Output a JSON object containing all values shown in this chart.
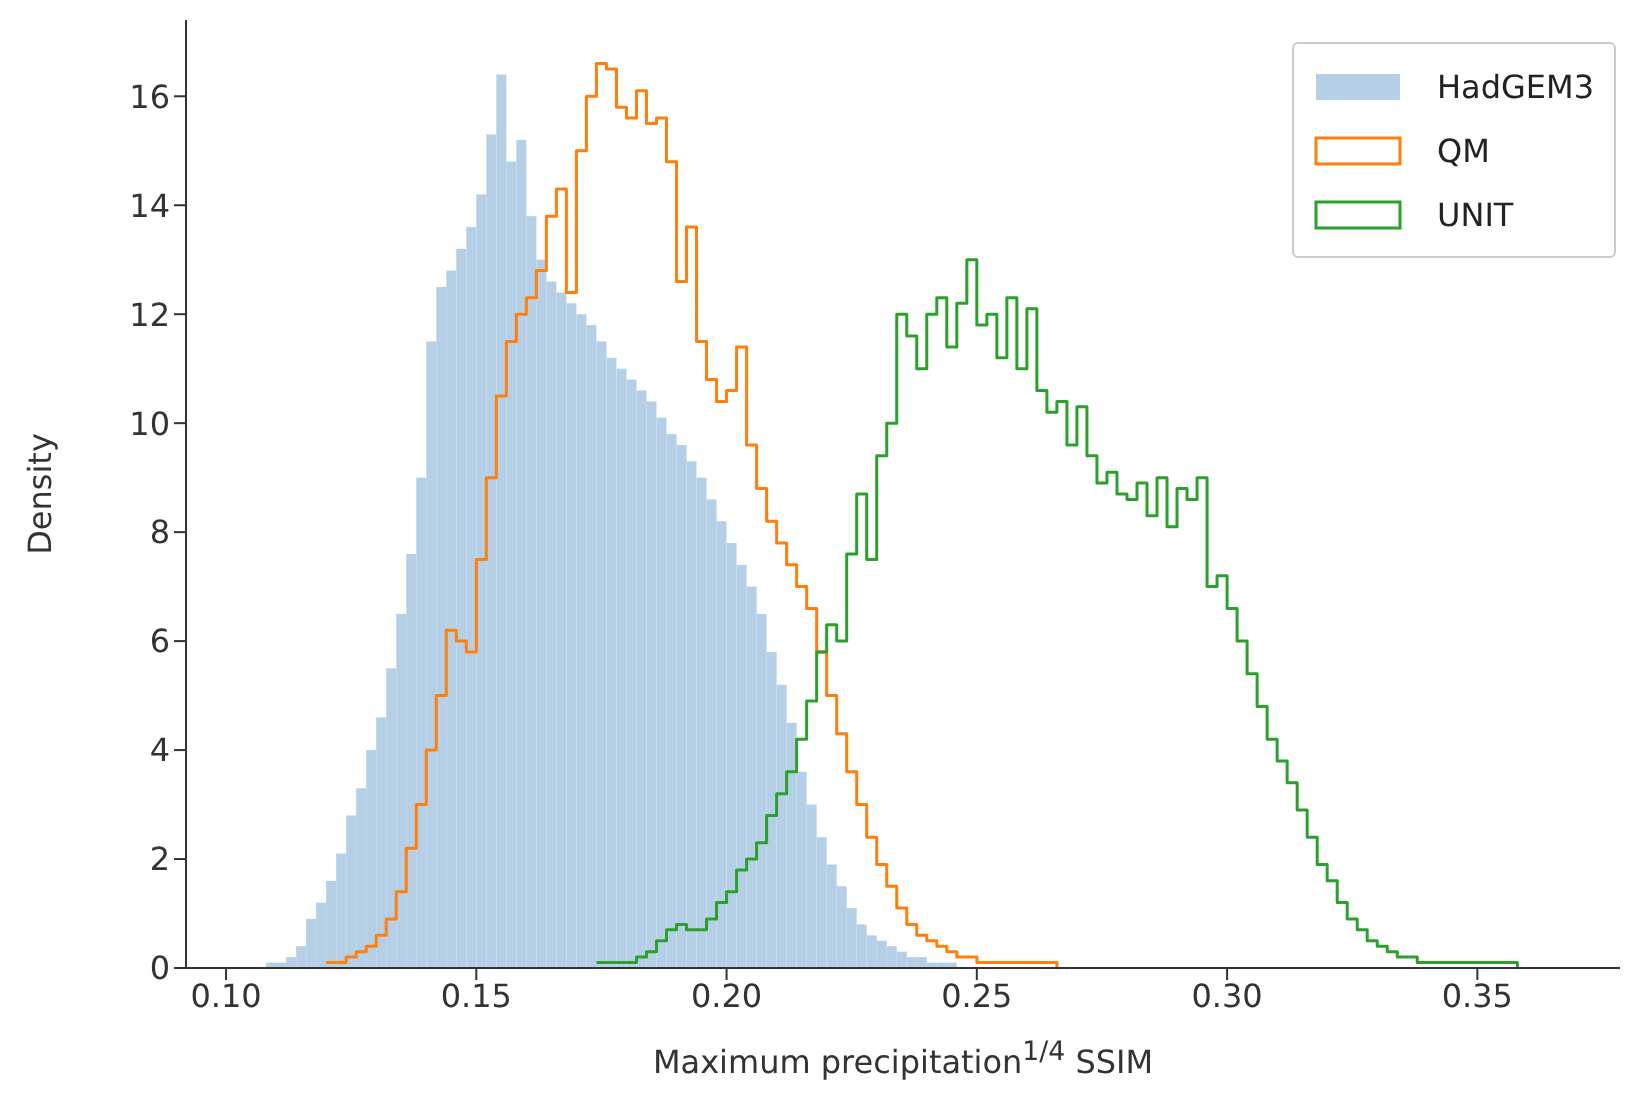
{
  "chart_data": {
    "type": "histogram",
    "xlabel": "Maximum precipitation$^{1/4}$ SSIM",
    "ylabel": "Density",
    "bins": [
      0.104,
      0.106,
      0.108,
      0.11,
      0.112,
      0.114,
      0.116,
      0.118,
      0.12,
      0.122,
      0.124,
      0.126,
      0.128,
      0.13,
      0.132,
      0.134,
      0.136,
      0.138,
      0.14,
      0.142,
      0.144,
      0.146,
      0.148,
      0.15,
      0.152,
      0.154,
      0.156,
      0.158,
      0.16,
      0.162,
      0.164,
      0.166,
      0.168,
      0.17,
      0.172,
      0.174,
      0.176,
      0.178,
      0.18,
      0.182,
      0.184,
      0.186,
      0.188,
      0.19,
      0.192,
      0.194,
      0.196,
      0.198,
      0.2,
      0.202,
      0.204,
      0.206,
      0.208,
      0.21,
      0.212,
      0.214,
      0.216,
      0.218,
      0.22,
      0.222,
      0.224,
      0.226,
      0.228,
      0.23,
      0.232,
      0.234,
      0.236,
      0.238,
      0.24,
      0.242,
      0.244,
      0.246,
      0.248,
      0.25,
      0.252,
      0.254,
      0.256,
      0.258,
      0.26,
      0.262,
      0.264,
      0.266,
      0.268,
      0.27,
      0.272,
      0.274,
      0.276,
      0.278,
      0.28,
      0.282,
      0.284,
      0.286,
      0.288,
      0.29,
      0.292,
      0.294,
      0.296,
      0.298,
      0.3,
      0.302,
      0.304,
      0.306,
      0.308,
      0.31,
      0.312,
      0.314,
      0.316,
      0.318,
      0.32,
      0.322,
      0.324,
      0.326,
      0.328,
      0.33,
      0.332,
      0.334,
      0.336,
      0.338,
      0.34,
      0.342,
      0.344,
      0.346,
      0.348,
      0.35,
      0.352,
      0.354,
      0.356,
      0.358
    ],
    "series": [
      {
        "name": "HadGEM3",
        "color": "#b5d0e6",
        "values": [
          0,
          0,
          0.1,
          0.1,
          0.2,
          0.4,
          0.9,
          1.2,
          1.6,
          2.1,
          2.8,
          3.3,
          4.0,
          4.6,
          5.5,
          6.5,
          7.6,
          9.0,
          11.5,
          12.5,
          12.8,
          13.2,
          13.6,
          14.2,
          15.3,
          16.4,
          14.8,
          15.2,
          13.8,
          13.0,
          12.6,
          12.4,
          12.2,
          12.0,
          11.8,
          11.5,
          11.2,
          11.0,
          10.8,
          10.6,
          10.4,
          10.1,
          9.8,
          9.6,
          9.3,
          9.0,
          8.6,
          8.2,
          7.8,
          7.4,
          7.0,
          6.5,
          5.8,
          5.2,
          4.5,
          3.6,
          3.0,
          2.4,
          1.9,
          1.5,
          1.1,
          0.8,
          0.6,
          0.5,
          0.4,
          0.3,
          0.2,
          0.2,
          0.1,
          0.1,
          0.1,
          0,
          0,
          0,
          0,
          0,
          0,
          0,
          0,
          0,
          0,
          0,
          0,
          0,
          0,
          0,
          0,
          0,
          0,
          0,
          0,
          0,
          0,
          0,
          0,
          0,
          0,
          0,
          0,
          0,
          0,
          0,
          0,
          0,
          0,
          0,
          0,
          0,
          0,
          0,
          0,
          0,
          0,
          0,
          0,
          0,
          0,
          0,
          0,
          0,
          0,
          0,
          0,
          0,
          0,
          0,
          0
        ]
      },
      {
        "name": "QM",
        "type": "step",
        "color": "#ff7f0e",
        "x": [
          0.12,
          0.122,
          0.124,
          0.126,
          0.128,
          0.13,
          0.132,
          0.134,
          0.136,
          0.138,
          0.14,
          0.142,
          0.144,
          0.146,
          0.148,
          0.15,
          0.152,
          0.154,
          0.156,
          0.158,
          0.16,
          0.162,
          0.164,
          0.166,
          0.168,
          0.17,
          0.172,
          0.174,
          0.176,
          0.178,
          0.18,
          0.182,
          0.184,
          0.186,
          0.188,
          0.19,
          0.192,
          0.194,
          0.196,
          0.198,
          0.2,
          0.202,
          0.204,
          0.206,
          0.208,
          0.21,
          0.212,
          0.214,
          0.216,
          0.218,
          0.22,
          0.222,
          0.224,
          0.226,
          0.228,
          0.23,
          0.232,
          0.234,
          0.236,
          0.238,
          0.24,
          0.242,
          0.244,
          0.246,
          0.248,
          0.25,
          0.252,
          0.254,
          0.256,
          0.258,
          0.26,
          0.262,
          0.264,
          0.266
        ],
        "values": [
          0.1,
          0.1,
          0.2,
          0.3,
          0.4,
          0.6,
          0.9,
          1.4,
          2.2,
          3.0,
          4.0,
          5.0,
          6.2,
          6.0,
          5.8,
          7.5,
          9.0,
          10.5,
          11.5,
          12.0,
          12.3,
          12.8,
          13.8,
          14.3,
          12.4,
          15.0,
          16.0,
          16.6,
          16.5,
          15.8,
          15.6,
          16.1,
          15.5,
          15.6,
          14.8,
          12.6,
          13.6,
          11.5,
          10.8,
          10.4,
          10.6,
          11.4,
          9.6,
          8.8,
          8.2,
          7.8,
          7.4,
          7.0,
          6.6,
          5.8,
          5.0,
          4.3,
          3.6,
          3.0,
          2.4,
          1.9,
          1.5,
          1.1,
          0.8,
          0.6,
          0.5,
          0.4,
          0.3,
          0.2,
          0.2,
          0.1,
          0.1,
          0.1,
          0.1,
          0.1,
          0.1,
          0.1,
          0.1,
          0
        ]
      },
      {
        "name": "UNIT",
        "type": "step",
        "color": "#2ca02c",
        "x": [
          0.174,
          0.176,
          0.178,
          0.18,
          0.182,
          0.184,
          0.186,
          0.188,
          0.19,
          0.192,
          0.194,
          0.196,
          0.198,
          0.2,
          0.202,
          0.204,
          0.206,
          0.208,
          0.21,
          0.212,
          0.214,
          0.216,
          0.218,
          0.22,
          0.222,
          0.224,
          0.226,
          0.228,
          0.23,
          0.232,
          0.234,
          0.236,
          0.238,
          0.24,
          0.242,
          0.244,
          0.246,
          0.248,
          0.25,
          0.252,
          0.254,
          0.256,
          0.258,
          0.26,
          0.262,
          0.264,
          0.266,
          0.268,
          0.27,
          0.272,
          0.274,
          0.276,
          0.278,
          0.28,
          0.282,
          0.284,
          0.286,
          0.288,
          0.29,
          0.292,
          0.294,
          0.296,
          0.298,
          0.3,
          0.302,
          0.304,
          0.306,
          0.308,
          0.31,
          0.312,
          0.314,
          0.316,
          0.318,
          0.32,
          0.322,
          0.324,
          0.326,
          0.328,
          0.33,
          0.332,
          0.334,
          0.336,
          0.338,
          0.34,
          0.342,
          0.344,
          0.346,
          0.348,
          0.35,
          0.352,
          0.354,
          0.356,
          0.358
        ],
        "values": [
          0.1,
          0.1,
          0.1,
          0.1,
          0.2,
          0.3,
          0.5,
          0.7,
          0.8,
          0.7,
          0.7,
          0.9,
          1.2,
          1.4,
          1.8,
          2.0,
          2.3,
          2.8,
          3.2,
          3.6,
          4.2,
          4.9,
          5.8,
          6.3,
          6.0,
          7.6,
          8.7,
          7.5,
          9.4,
          10.0,
          12.0,
          11.6,
          11.0,
          12.0,
          12.3,
          11.4,
          12.2,
          13.0,
          11.8,
          12.0,
          11.2,
          12.3,
          11.0,
          12.1,
          10.6,
          10.2,
          10.4,
          9.6,
          10.3,
          9.4,
          8.9,
          9.1,
          8.7,
          8.6,
          8.9,
          8.3,
          9.0,
          8.1,
          8.8,
          8.6,
          9.0,
          7.0,
          7.2,
          6.6,
          6.0,
          5.4,
          4.8,
          4.2,
          3.8,
          3.4,
          2.9,
          2.4,
          1.9,
          1.6,
          1.2,
          0.9,
          0.7,
          0.5,
          0.4,
          0.3,
          0.2,
          0.2,
          0.1,
          0.1,
          0.1,
          0.1,
          0.1,
          0.1,
          0.1,
          0.1,
          0.1,
          0.1,
          0
        ]
      }
    ],
    "xlim": [
      0.092,
      0.3785
    ],
    "xticks": [
      {
        "value": 0.1,
        "label": "0.10"
      },
      {
        "value": 0.15,
        "label": "0.15"
      },
      {
        "value": 0.2,
        "label": "0.20"
      },
      {
        "value": 0.25,
        "label": "0.25"
      },
      {
        "value": 0.3,
        "label": "0.30"
      },
      {
        "value": 0.35,
        "label": "0.35"
      }
    ],
    "ylim": [
      0,
      17.4
    ],
    "yticks": [
      0,
      2,
      4,
      6,
      8,
      10,
      12,
      14,
      16
    ],
    "legend": "top right"
  }
}
